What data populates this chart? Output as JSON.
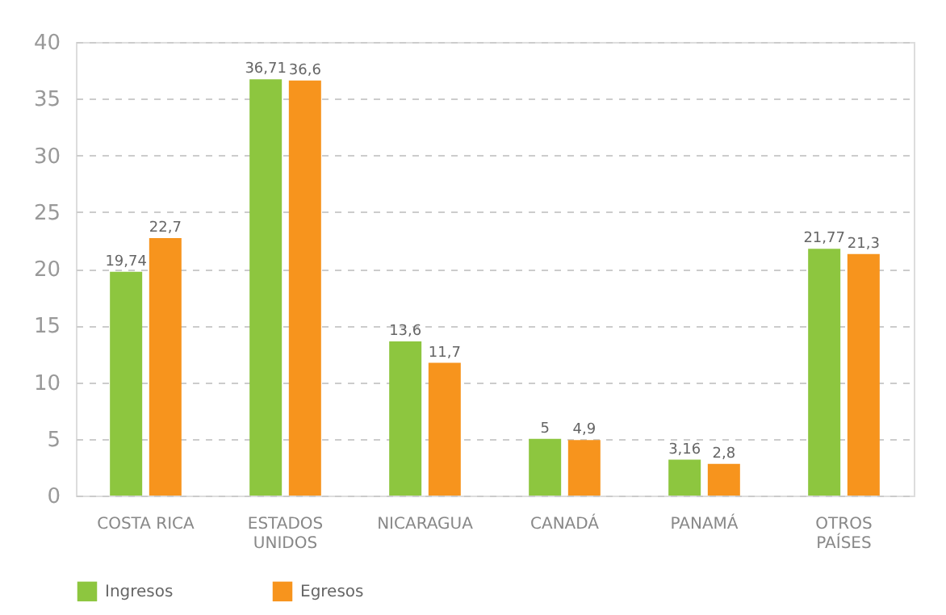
{
  "chart_data": {
    "type": "bar",
    "categories": [
      "COSTA RICA",
      "ESTADOS UNIDOS",
      "NICARAGUA",
      "CANADÁ",
      "PANAMÁ",
      "OTROS PAÍSES"
    ],
    "series": [
      {
        "name": "Ingresos",
        "color": "#8dc63f",
        "values": [
          19.74,
          36.71,
          13.6,
          5,
          3.16,
          21.77
        ],
        "value_labels": [
          "19,74",
          "36,71",
          "13,6",
          "5",
          "3,16",
          "21,77"
        ]
      },
      {
        "name": "Egresos",
        "color": "#f7941d",
        "values": [
          22.7,
          36.6,
          11.7,
          4.9,
          2.8,
          21.3
        ],
        "value_labels": [
          "22,7",
          "36,6",
          "11,7",
          "4,9",
          "2,8",
          "21,3"
        ]
      }
    ],
    "ylim": [
      0,
      40
    ],
    "yticks": [
      0,
      5,
      10,
      15,
      20,
      25,
      30,
      35,
      40
    ],
    "grid": "y",
    "legend": "bottom"
  }
}
